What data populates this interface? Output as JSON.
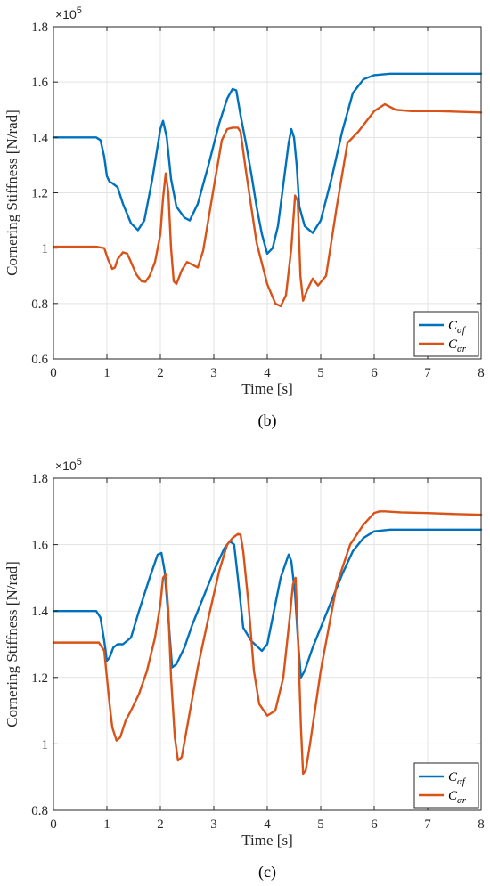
{
  "chart_data": [
    {
      "type": "line",
      "caption": "(b)",
      "xlabel": "Time [s]",
      "ylabel": "Cornering Stiffness [N/rad]",
      "multiplier": "×10",
      "multiplier_exp": "5",
      "xlim": [
        0,
        8
      ],
      "ylim": [
        0.6,
        1.8
      ],
      "xticks": [
        0,
        1,
        2,
        3,
        4,
        5,
        6,
        7,
        8
      ],
      "yticks": [
        0.6,
        0.8,
        1,
        1.2,
        1.4,
        1.6,
        1.8
      ],
      "ytick_labels": [
        "0.6",
        "0.8",
        "1",
        "1.2",
        "1.4",
        "1.6",
        "1.8"
      ],
      "grid": true,
      "legend_position": "bottom-right",
      "series": [
        {
          "name": "C_αf",
          "label_main": "C",
          "label_sub": "αf",
          "color": "#0072BD",
          "x": [
            0,
            0.3,
            0.6,
            0.8,
            0.88,
            0.95,
            1.0,
            1.05,
            1.1,
            1.2,
            1.3,
            1.45,
            1.58,
            1.7,
            1.85,
            2.0,
            2.05,
            2.12,
            2.2,
            2.3,
            2.45,
            2.55,
            2.7,
            2.9,
            3.1,
            3.25,
            3.35,
            3.42,
            3.5,
            3.6,
            3.7,
            3.8,
            3.9,
            4.0,
            4.1,
            4.2,
            4.3,
            4.4,
            4.45,
            4.5,
            4.55,
            4.6,
            4.7,
            4.85,
            5.0,
            5.2,
            5.4,
            5.6,
            5.8,
            6.0,
            6.3,
            6.6,
            7.0,
            7.5,
            8.0
          ],
          "y": [
            1.4,
            1.4,
            1.4,
            1.4,
            1.39,
            1.33,
            1.26,
            1.24,
            1.235,
            1.22,
            1.16,
            1.09,
            1.065,
            1.1,
            1.25,
            1.43,
            1.46,
            1.4,
            1.25,
            1.15,
            1.11,
            1.1,
            1.16,
            1.3,
            1.45,
            1.54,
            1.575,
            1.57,
            1.48,
            1.38,
            1.27,
            1.15,
            1.05,
            0.98,
            1.0,
            1.08,
            1.23,
            1.38,
            1.43,
            1.4,
            1.3,
            1.15,
            1.08,
            1.055,
            1.1,
            1.25,
            1.42,
            1.56,
            1.61,
            1.625,
            1.63,
            1.63,
            1.63,
            1.63,
            1.63
          ]
        },
        {
          "name": "C_αr",
          "label_main": "C",
          "label_sub": "αr",
          "color": "#D95319",
          "x": [
            0,
            0.4,
            0.8,
            0.95,
            1.02,
            1.1,
            1.15,
            1.2,
            1.3,
            1.38,
            1.45,
            1.55,
            1.65,
            1.72,
            1.8,
            1.9,
            2.0,
            2.05,
            2.1,
            2.15,
            2.2,
            2.25,
            2.3,
            2.4,
            2.5,
            2.6,
            2.7,
            2.8,
            3.0,
            3.15,
            3.25,
            3.35,
            3.45,
            3.5,
            3.6,
            3.8,
            4.0,
            4.15,
            4.25,
            4.35,
            4.45,
            4.52,
            4.57,
            4.62,
            4.67,
            4.75,
            4.85,
            4.95,
            5.1,
            5.3,
            5.5,
            5.7,
            5.9,
            6.0,
            6.2,
            6.4,
            6.7,
            7.2,
            8.0
          ],
          "y": [
            1.005,
            1.005,
            1.005,
            1.0,
            0.96,
            0.925,
            0.93,
            0.96,
            0.985,
            0.98,
            0.95,
            0.905,
            0.88,
            0.878,
            0.9,
            0.95,
            1.05,
            1.18,
            1.27,
            1.2,
            1.0,
            0.88,
            0.87,
            0.92,
            0.95,
            0.94,
            0.93,
            0.99,
            1.22,
            1.39,
            1.43,
            1.435,
            1.435,
            1.42,
            1.28,
            1.02,
            0.87,
            0.8,
            0.79,
            0.83,
            1.0,
            1.19,
            1.17,
            0.9,
            0.81,
            0.85,
            0.89,
            0.865,
            0.9,
            1.15,
            1.38,
            1.42,
            1.47,
            1.495,
            1.52,
            1.5,
            1.495,
            1.495,
            1.49
          ]
        }
      ]
    },
    {
      "type": "line",
      "caption": "(c)",
      "xlabel": "Time [s]",
      "ylabel": "Cornering Stiffness [N/rad]",
      "multiplier": "×10",
      "multiplier_exp": "5",
      "xlim": [
        0,
        8
      ],
      "ylim": [
        0.8,
        1.8
      ],
      "xticks": [
        0,
        1,
        2,
        3,
        4,
        5,
        6,
        7,
        8
      ],
      "yticks": [
        0.8,
        1,
        1.2,
        1.4,
        1.6,
        1.8
      ],
      "ytick_labels": [
        "0.8",
        "1",
        "1.2",
        "1.4",
        "1.6",
        "1.8"
      ],
      "grid": true,
      "legend_position": "bottom-right",
      "series": [
        {
          "name": "C_αf",
          "label_main": "C",
          "label_sub": "αf",
          "color": "#0072BD",
          "x": [
            0,
            0.4,
            0.8,
            0.88,
            0.95,
            1.0,
            1.05,
            1.12,
            1.2,
            1.3,
            1.45,
            1.6,
            1.8,
            1.95,
            2.02,
            2.08,
            2.15,
            2.22,
            2.3,
            2.45,
            2.6,
            2.8,
            3.0,
            3.2,
            3.3,
            3.38,
            3.45,
            3.55,
            3.7,
            3.9,
            4.0,
            4.1,
            4.25,
            4.4,
            4.45,
            4.52,
            4.58,
            4.63,
            4.7,
            4.85,
            5.0,
            5.2,
            5.4,
            5.6,
            5.8,
            6.0,
            6.3,
            6.6,
            7.0,
            7.5,
            8.0
          ],
          "y": [
            1.4,
            1.4,
            1.4,
            1.38,
            1.31,
            1.25,
            1.26,
            1.29,
            1.3,
            1.3,
            1.32,
            1.4,
            1.5,
            1.57,
            1.575,
            1.52,
            1.38,
            1.23,
            1.24,
            1.29,
            1.36,
            1.44,
            1.52,
            1.59,
            1.61,
            1.6,
            1.5,
            1.35,
            1.31,
            1.28,
            1.3,
            1.38,
            1.5,
            1.57,
            1.55,
            1.45,
            1.3,
            1.2,
            1.22,
            1.29,
            1.35,
            1.43,
            1.51,
            1.58,
            1.62,
            1.64,
            1.645,
            1.645,
            1.645,
            1.645,
            1.645
          ]
        },
        {
          "name": "C_αr",
          "label_main": "C",
          "label_sub": "αr",
          "color": "#D95319",
          "x": [
            0,
            0.4,
            0.85,
            0.95,
            1.0,
            1.05,
            1.1,
            1.18,
            1.25,
            1.35,
            1.45,
            1.6,
            1.75,
            1.9,
            2.0,
            2.05,
            2.1,
            2.15,
            2.2,
            2.27,
            2.33,
            2.4,
            2.5,
            2.7,
            2.9,
            3.1,
            3.25,
            3.35,
            3.45,
            3.5,
            3.55,
            3.65,
            3.75,
            3.85,
            4.0,
            4.15,
            4.3,
            4.42,
            4.48,
            4.53,
            4.58,
            4.63,
            4.67,
            4.72,
            4.8,
            5.0,
            5.3,
            5.55,
            5.8,
            6.0,
            6.1,
            6.2,
            6.5,
            7.0,
            7.5,
            8.0
          ],
          "y": [
            1.305,
            1.305,
            1.305,
            1.28,
            1.2,
            1.12,
            1.05,
            1.01,
            1.02,
            1.07,
            1.1,
            1.15,
            1.22,
            1.32,
            1.42,
            1.5,
            1.51,
            1.4,
            1.2,
            1.02,
            0.95,
            0.96,
            1.05,
            1.23,
            1.38,
            1.52,
            1.6,
            1.62,
            1.632,
            1.63,
            1.58,
            1.42,
            1.22,
            1.12,
            1.085,
            1.1,
            1.2,
            1.38,
            1.48,
            1.5,
            1.3,
            1.05,
            0.91,
            0.92,
            1.0,
            1.22,
            1.48,
            1.6,
            1.66,
            1.695,
            1.7,
            1.7,
            1.697,
            1.695,
            1.692,
            1.69
          ]
        }
      ]
    }
  ]
}
